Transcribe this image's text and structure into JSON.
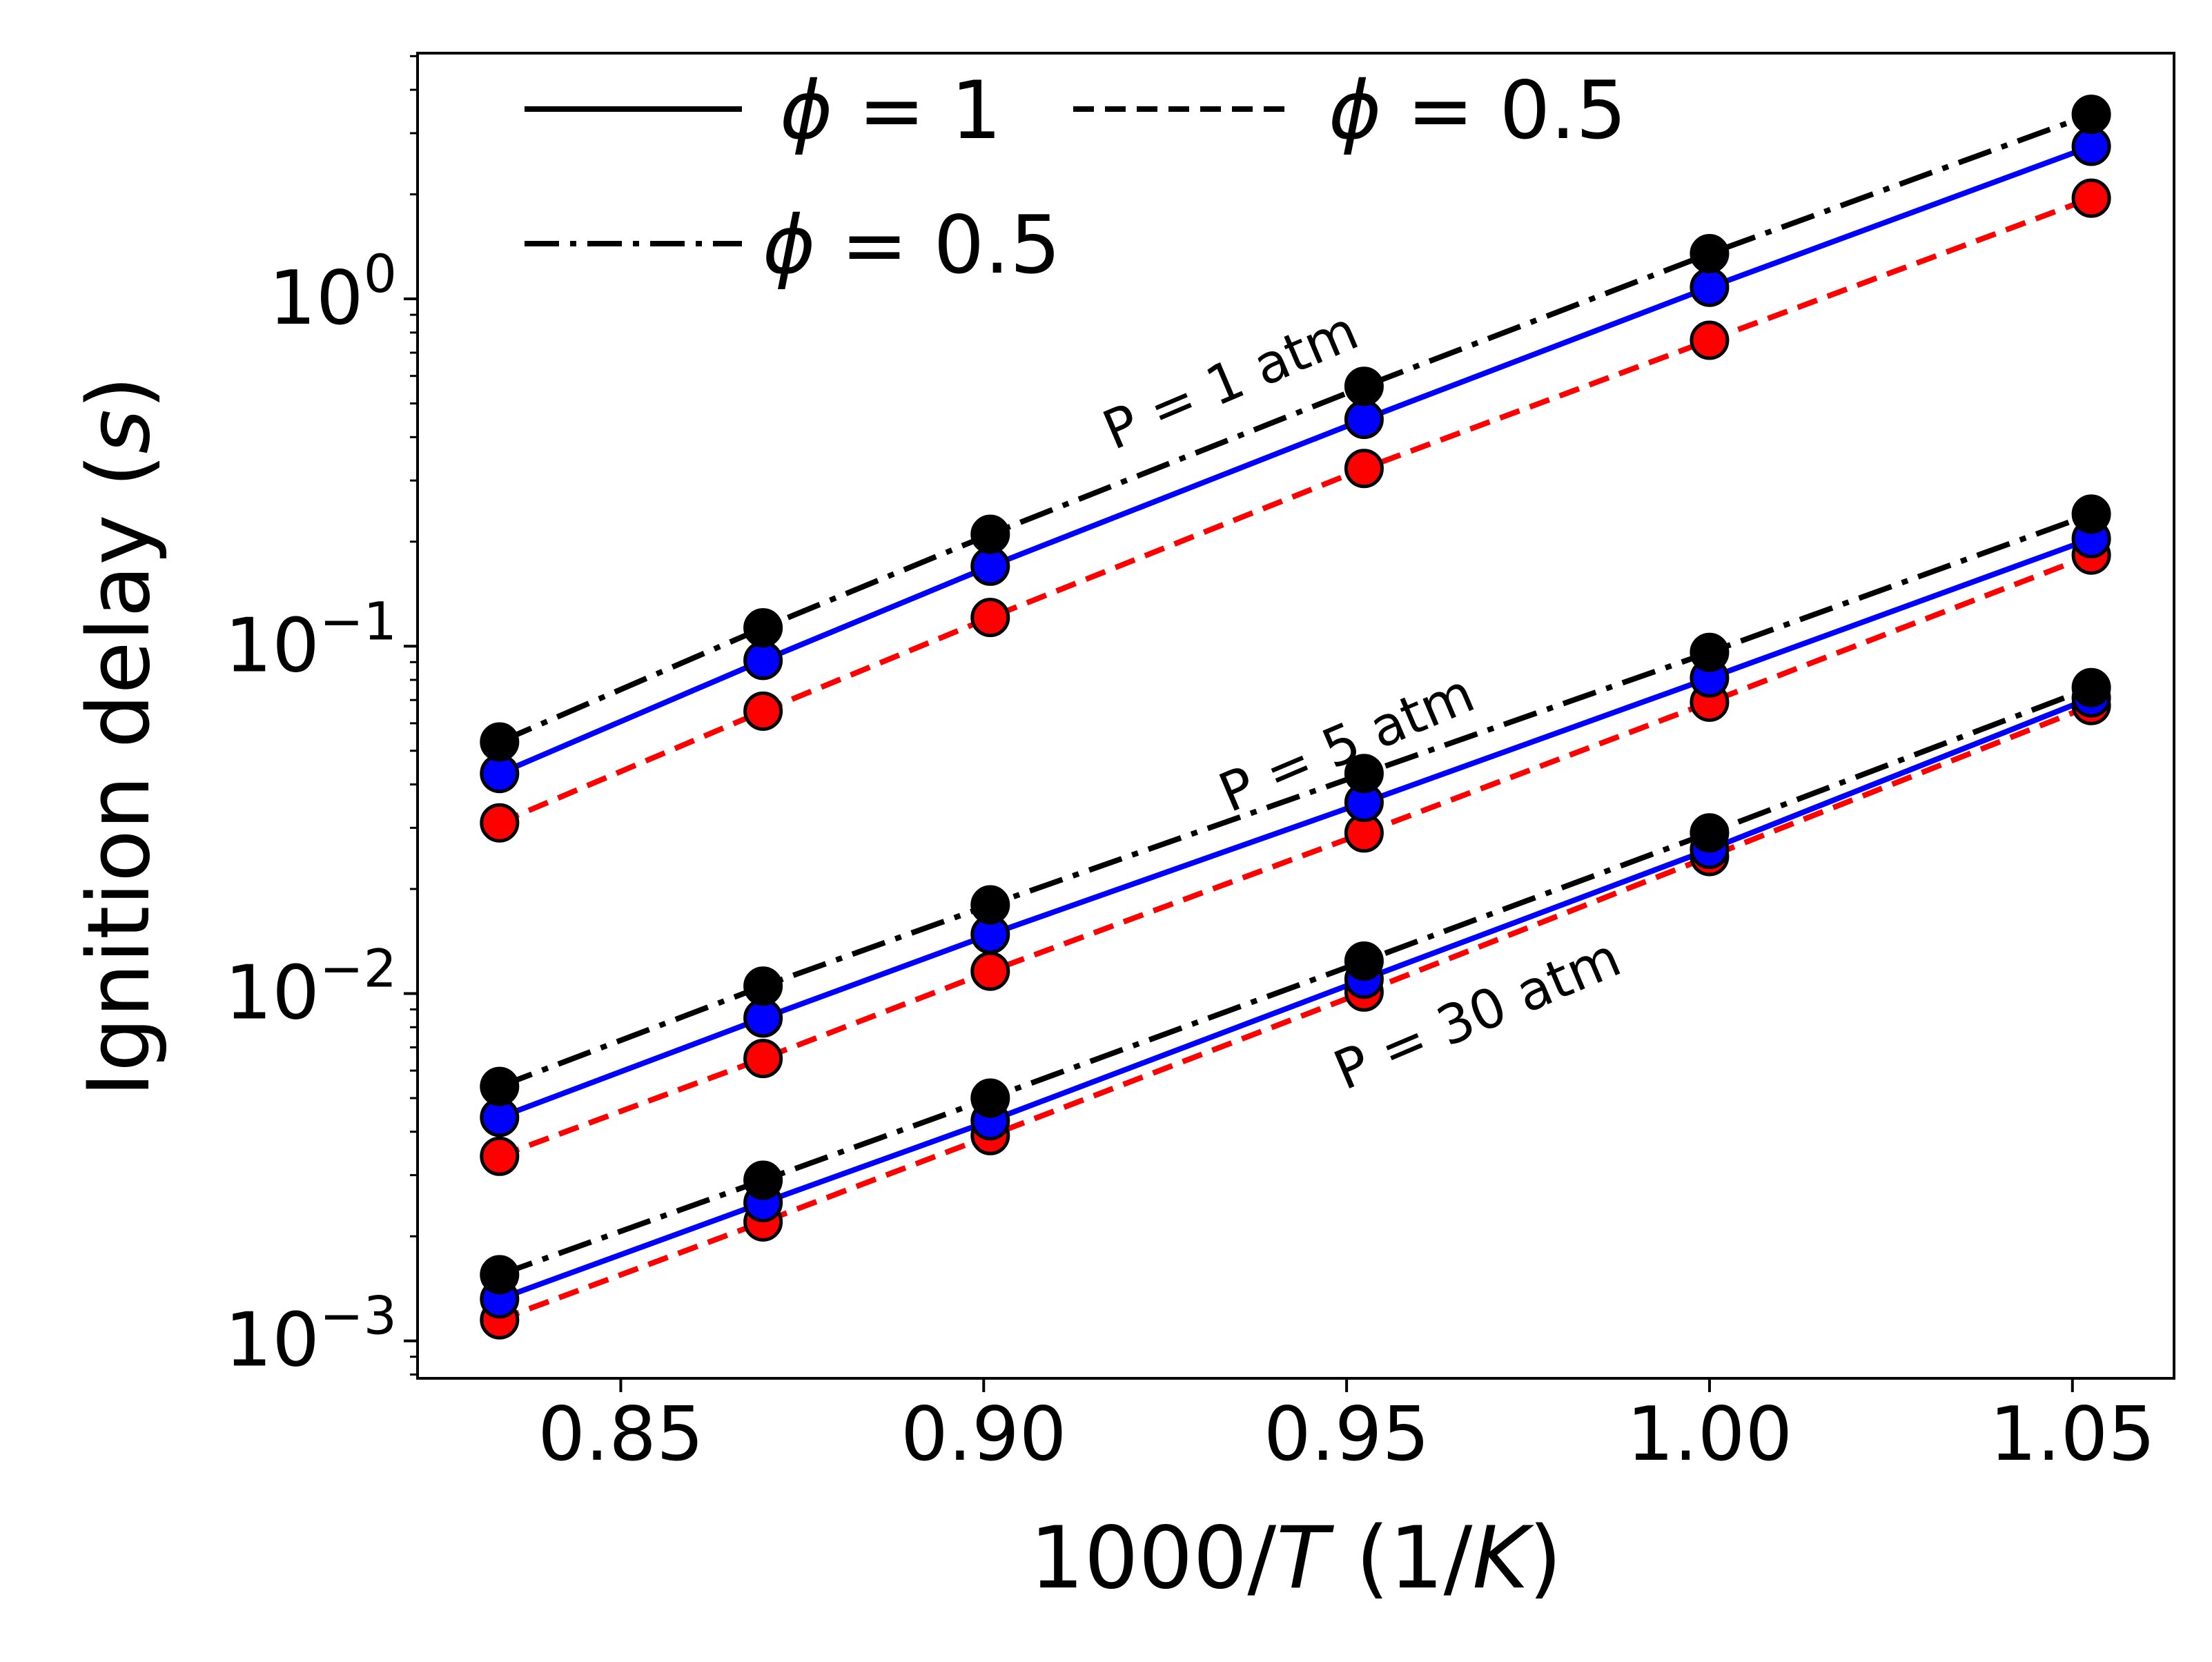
{
  "chart_data": {
    "type": "line",
    "title": "",
    "xlabel": {
      "prefix": "1000/",
      "var": "T",
      "mid": " (1/",
      "unit": "K",
      "suffix": ")"
    },
    "ylabel": {
      "prefix": "Ignition delay (",
      "var": "s",
      "suffix": ")"
    },
    "x": [
      0.8333,
      0.8696,
      0.9009,
      0.9524,
      1.0,
      1.0526
    ],
    "xlim": [
      0.822,
      1.064
    ],
    "xticks": [
      "0.85",
      "0.90",
      "0.95",
      "1.00",
      "1.05"
    ],
    "xtick_values": [
      0.85,
      0.9,
      0.95,
      1.0,
      1.05
    ],
    "ylim": [
      0.00078,
      5.1
    ],
    "yscale": "log",
    "yticks": [
      {
        "value": 1,
        "base": "10",
        "exp": "0"
      },
      {
        "value": 0.1,
        "base": "10",
        "exp": "−1"
      },
      {
        "value": 0.01,
        "base": "10",
        "exp": "−2"
      },
      {
        "value": 0.001,
        "base": "10",
        "exp": "−3"
      }
    ],
    "grid": false,
    "legend_position": "top-left",
    "legend": [
      {
        "label_symbol": "ϕ",
        "label_text": " = 1",
        "style": "solid"
      },
      {
        "label_symbol": "ϕ",
        "label_text": " = 0.5",
        "style": "dashed"
      },
      {
        "label_symbol": "ϕ",
        "label_text": " = 0.5",
        "style": "dashdot"
      }
    ],
    "colors": {
      "solid": "#0000ff",
      "dashed": "#ff0000",
      "dashdot": "#000000",
      "legend_line": "#000000",
      "marker_edge": "#000000"
    },
    "annotations": [
      {
        "text": "P = 1 atm",
        "x": 0.935,
        "y": 0.52
      },
      {
        "text": "P = 5 atm",
        "x": 0.951,
        "y": 0.047
      },
      {
        "text": "P = 30 atm",
        "x": 0.969,
        "y": 0.0078
      }
    ],
    "series": [
      {
        "group": "P = 1 atm",
        "style": "dashdot",
        "values": [
          0.053,
          0.113,
          0.21,
          0.56,
          1.35,
          3.4
        ]
      },
      {
        "group": "P = 1 atm",
        "style": "solid",
        "values": [
          0.043,
          0.091,
          0.17,
          0.45,
          1.08,
          2.75
        ]
      },
      {
        "group": "P = 1 atm",
        "style": "dashed",
        "values": [
          0.031,
          0.065,
          0.121,
          0.325,
          0.76,
          1.95
        ]
      },
      {
        "group": "P = 5 atm",
        "style": "dashdot",
        "values": [
          0.0054,
          0.0105,
          0.018,
          0.043,
          0.096,
          0.24
        ]
      },
      {
        "group": "P = 5 atm",
        "style": "solid",
        "values": [
          0.0044,
          0.0085,
          0.0148,
          0.0355,
          0.081,
          0.204
        ]
      },
      {
        "group": "P = 5 atm",
        "style": "dashed",
        "values": [
          0.0034,
          0.0065,
          0.0116,
          0.029,
          0.069,
          0.183
        ]
      },
      {
        "group": "P = 30 atm",
        "style": "dashdot",
        "values": [
          0.00155,
          0.0029,
          0.005,
          0.0124,
          0.029,
          0.076
        ]
      },
      {
        "group": "P = 30 atm",
        "style": "solid",
        "values": [
          0.00132,
          0.0025,
          0.0043,
          0.011,
          0.026,
          0.071
        ]
      },
      {
        "group": "P = 30 atm",
        "style": "dashed",
        "values": [
          0.00115,
          0.0022,
          0.0039,
          0.0101,
          0.0248,
          0.0675
        ]
      }
    ]
  }
}
